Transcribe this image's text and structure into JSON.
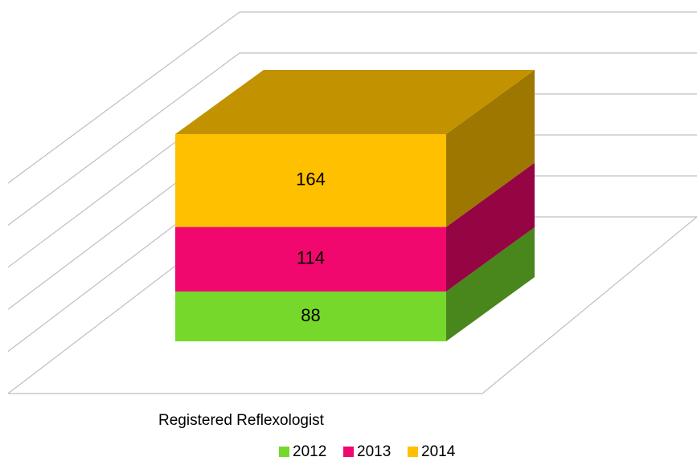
{
  "chart_data": {
    "type": "bar3d_stacked",
    "categories": [
      "Registered Reflexologist"
    ],
    "series": [
      {
        "name": "2012",
        "color": "#76d82b",
        "values": [
          88
        ]
      },
      {
        "name": "2013",
        "color": "#f0086e",
        "values": [
          114
        ]
      },
      {
        "name": "2014",
        "color": "#ffc000",
        "values": [
          164
        ]
      }
    ],
    "ylim": [
      0,
      500
    ],
    "yticks": [
      0,
      100,
      200,
      300,
      400,
      500
    ],
    "grid": true,
    "legend": "bottom"
  }
}
